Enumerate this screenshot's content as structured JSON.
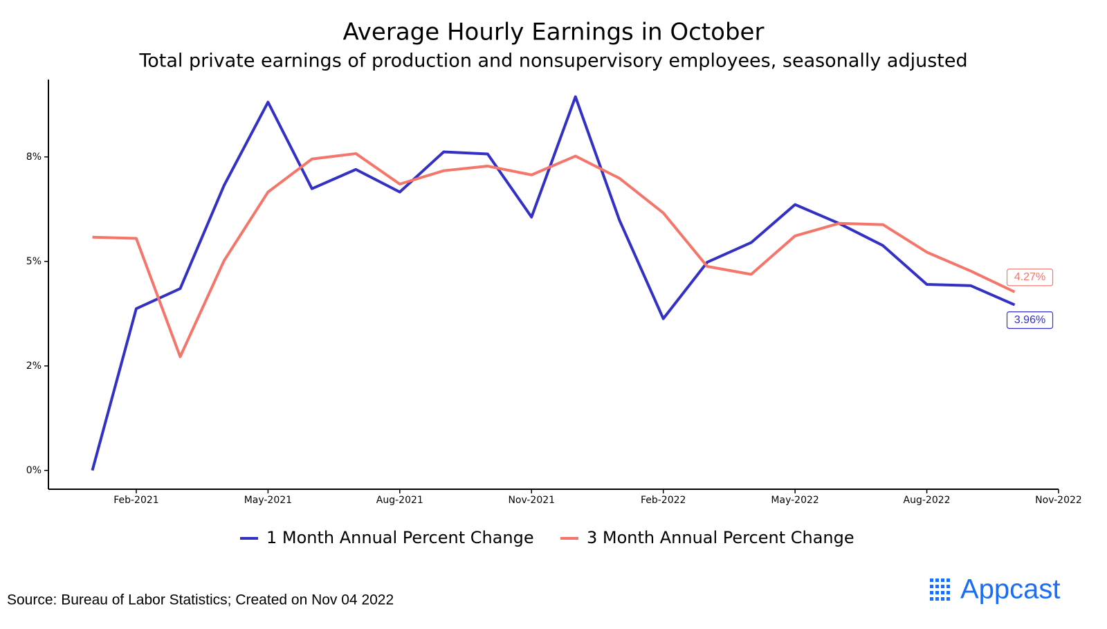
{
  "chart_data": {
    "type": "line",
    "title": "Average Hourly Earnings in October",
    "subtitle": "Total private earnings of production and nonsupervisory employees, seasonally adjusted",
    "x": [
      "2021-01",
      "2021-02",
      "2021-03",
      "2021-04",
      "2021-05",
      "2021-06",
      "2021-07",
      "2021-08",
      "2021-09",
      "2021-10",
      "2021-11",
      "2021-12",
      "2022-01",
      "2022-02",
      "2022-03",
      "2022-04",
      "2022-05",
      "2022-06",
      "2022-07",
      "2022-08",
      "2022-09",
      "2022-10"
    ],
    "series": [
      {
        "name": "1 Month Annual Percent Change",
        "color": "#3330c4",
        "values": [
          0,
          3.87,
          4.35,
          6.82,
          8.81,
          6.74,
          7.2,
          6.66,
          7.62,
          7.57,
          6.06,
          8.94,
          5.99,
          3.63,
          4.98,
          5.45,
          6.36,
          5.91,
          5.38,
          4.45,
          4.42,
          3.96
        ],
        "value_labels": [
          null,
          null,
          null,
          null,
          null,
          null,
          null,
          null,
          null,
          null,
          null,
          null,
          null,
          null,
          null,
          null,
          null,
          null,
          null,
          null,
          null,
          "3.96%"
        ]
      },
      {
        "name": "3 Month Annual Percent Change",
        "color": "#f4766b",
        "values": [
          5.58,
          5.55,
          2.72,
          5.02,
          6.66,
          7.45,
          7.58,
          6.85,
          7.17,
          7.28,
          7.07,
          7.52,
          6.99,
          6.16,
          4.88,
          4.69,
          5.61,
          5.91,
          5.88,
          5.22,
          4.77,
          4.27
        ],
        "value_labels": [
          null,
          null,
          null,
          null,
          null,
          null,
          null,
          null,
          null,
          null,
          null,
          null,
          null,
          null,
          null,
          null,
          null,
          null,
          null,
          null,
          null,
          "4.27%"
        ]
      }
    ],
    "xlim": [
      "2020-12",
      "2022-11"
    ],
    "xticks": [
      {
        "value": "2021-02",
        "label": "Feb-2021"
      },
      {
        "value": "2021-05",
        "label": "May-2021"
      },
      {
        "value": "2021-08",
        "label": "Aug-2021"
      },
      {
        "value": "2021-11",
        "label": "Nov-2021"
      },
      {
        "value": "2022-02",
        "label": "Feb-2022"
      },
      {
        "value": "2022-05",
        "label": "May-2022"
      },
      {
        "value": "2022-08",
        "label": "Aug-2022"
      },
      {
        "value": "2022-11",
        "label": "Nov-2022"
      }
    ],
    "ylim": [
      -0.45,
      9.35
    ],
    "yticks": [
      {
        "value": 0,
        "label": "0%"
      },
      {
        "value": 2.5,
        "label": "2%"
      },
      {
        "value": 5,
        "label": "5%"
      },
      {
        "value": 7.5,
        "label": "8%"
      }
    ],
    "grid": false,
    "legend": "bottom",
    "source": "Source: Bureau of Labor Statistics; Created on Nov 04 2022",
    "logo": "Appcast"
  }
}
